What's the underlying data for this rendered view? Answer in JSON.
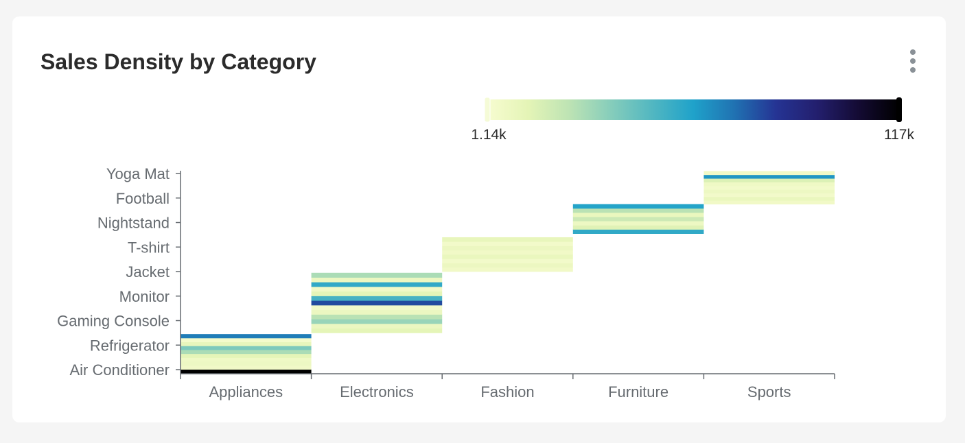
{
  "card": {
    "title": "Sales Density by Category"
  },
  "menu": {
    "icon": "more-vertical-icon"
  },
  "colors": {
    "scale": [
      "#f7fcd0",
      "#e4f4b6",
      "#bde3b4",
      "#86cdbb",
      "#52b7c1",
      "#1fa2ca",
      "#2072b2",
      "#253494",
      "#231f6e",
      "#140b34",
      "#000000"
    ],
    "axis": "#666b70",
    "background": "#ffffff"
  },
  "chart_data": {
    "type": "heatmap",
    "title": "Sales Density by Category",
    "categories": [
      "Appliances",
      "Electronics",
      "Fashion",
      "Furniture",
      "Sports"
    ],
    "products": [
      "Air Conditioner",
      "Refrigerator",
      "Gaming Console",
      "Monitor",
      "Jacket",
      "T-shirt",
      "Nightstand",
      "Football",
      "Yoga Mat"
    ],
    "legend": {
      "min": 1140,
      "max": 117000,
      "min_label": "1.14k",
      "max_label": "117k",
      "placement": "top-right"
    },
    "grid": false,
    "blocks": [
      {
        "category": "Appliances",
        "y_range": [
          -0.15,
          1.45
        ],
        "values": [
          117000,
          5000,
          7000,
          6000,
          12000,
          28000,
          38000,
          10000,
          3000,
          68000
        ]
      },
      {
        "category": "Electronics",
        "y_range": [
          1.5,
          3.95
        ],
        "values": [
          12000,
          8000,
          32000,
          25000,
          8000,
          4000,
          78000,
          50000,
          12000,
          5000,
          55000,
          8000,
          28000
        ]
      },
      {
        "category": "Fashion",
        "y_range": [
          4.0,
          5.4
        ],
        "values": [
          5000,
          8000,
          4000,
          9000,
          5000,
          8000,
          4000,
          10000
        ]
      },
      {
        "category": "Furniture",
        "y_range": [
          5.55,
          6.75
        ],
        "values": [
          55000,
          14000,
          7000,
          20000,
          9000,
          25000,
          58000
        ]
      },
      {
        "category": "Sports",
        "y_range": [
          6.75,
          8.1
        ],
        "values": [
          5000,
          9000,
          4000,
          7000,
          4000,
          6000,
          15000,
          62000,
          5000
        ]
      }
    ]
  }
}
